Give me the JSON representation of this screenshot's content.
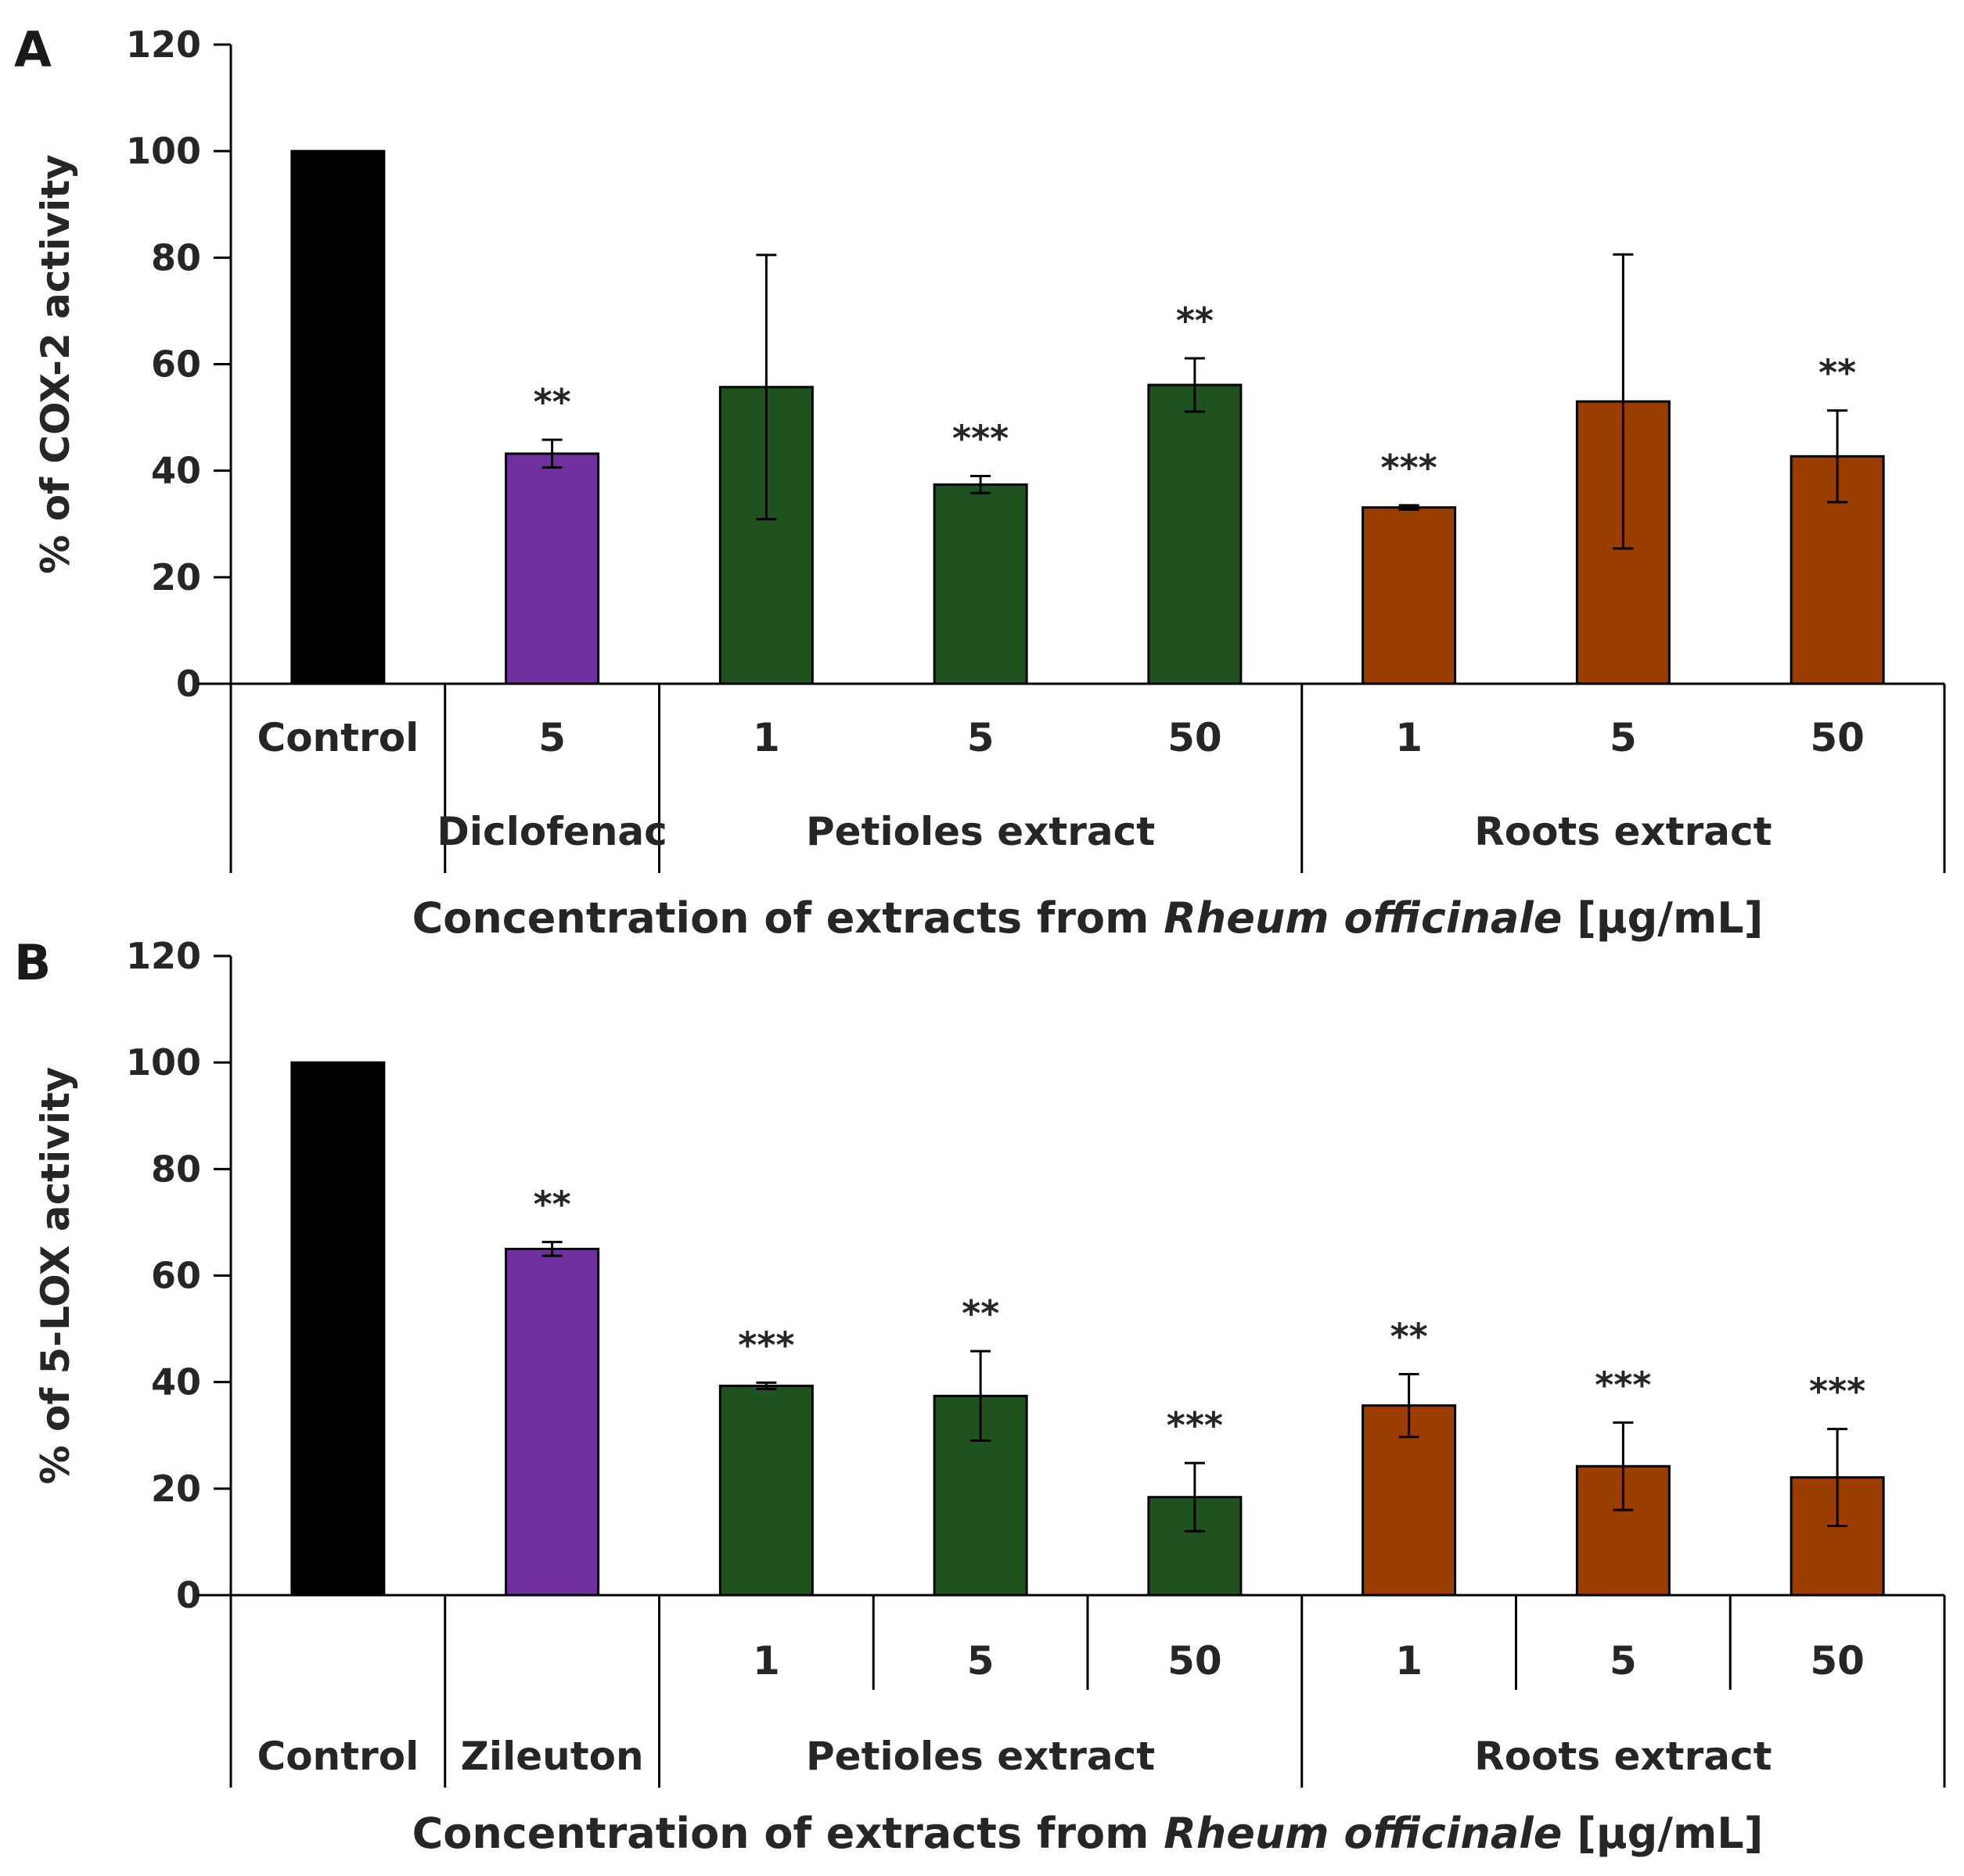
{
  "figure": {
    "colors": {
      "control": "#000000",
      "reference": "#7030A0",
      "petioles": "#1E5320",
      "roots": "#9C3D00",
      "axis": "#000000",
      "text": "#262626"
    }
  },
  "chart_data": [
    {
      "panel": "A",
      "type": "bar",
      "ylabel": "% of COX-2 activity",
      "xlabel": {
        "prefix": "Concentration of extracts from ",
        "italic": "Rheum officinale",
        "suffix": " [µg/mL]"
      },
      "ylim": [
        0,
        120
      ],
      "yticks": [
        0,
        20,
        40,
        60,
        80,
        100,
        120
      ],
      "bars": [
        {
          "group": "control",
          "label": "Control",
          "value": 100,
          "error": 0,
          "sig": ""
        },
        {
          "group": "reference",
          "label": "5",
          "value": 43.2,
          "error": 2.6,
          "sig": "**"
        },
        {
          "group": "petioles",
          "label": "1",
          "value": 55.7,
          "error": 24.8,
          "sig": ""
        },
        {
          "group": "petioles",
          "label": "5",
          "value": 37.4,
          "error": 1.6,
          "sig": "***"
        },
        {
          "group": "petioles",
          "label": "50",
          "value": 56.1,
          "error": 5.0,
          "sig": "**"
        },
        {
          "group": "roots",
          "label": "1",
          "value": 33.1,
          "error": 0.4,
          "sig": "***"
        },
        {
          "group": "roots",
          "label": "5",
          "value": 53.0,
          "error": 27.6,
          "sig": ""
        },
        {
          "group": "roots",
          "label": "50",
          "value": 42.7,
          "error": 8.6,
          "sig": "**"
        }
      ],
      "groups": [
        {
          "label": "",
          "span": [
            0,
            0
          ]
        },
        {
          "label": "Diclofenac",
          "span": [
            1,
            1
          ]
        },
        {
          "label": "Petioles extract",
          "span": [
            2,
            4
          ]
        },
        {
          "label": "Roots extract",
          "span": [
            5,
            7
          ]
        }
      ]
    },
    {
      "panel": "B",
      "type": "bar",
      "ylabel": "% of 5-LOX activity",
      "xlabel": {
        "prefix": "Concentration of extracts from ",
        "italic": "Rheum officinale",
        "suffix": " [µg/mL]"
      },
      "ylim": [
        0,
        120
      ],
      "yticks": [
        0,
        20,
        40,
        60,
        80,
        100,
        120
      ],
      "bars": [
        {
          "group": "control",
          "label": "",
          "value": 100,
          "error": 0,
          "sig": ""
        },
        {
          "group": "reference",
          "label": "",
          "value": 65.0,
          "error": 1.3,
          "sig": "**"
        },
        {
          "group": "petioles",
          "label": "1",
          "value": 39.3,
          "error": 0.6,
          "sig": "***"
        },
        {
          "group": "petioles",
          "label": "5",
          "value": 37.4,
          "error": 8.4,
          "sig": "**"
        },
        {
          "group": "petioles",
          "label": "50",
          "value": 18.4,
          "error": 6.4,
          "sig": "***"
        },
        {
          "group": "roots",
          "label": "1",
          "value": 35.6,
          "error": 5.9,
          "sig": "**"
        },
        {
          "group": "roots",
          "label": "5",
          "value": 24.2,
          "error": 8.2,
          "sig": "***"
        },
        {
          "group": "roots",
          "label": "50",
          "value": 22.1,
          "error": 9.1,
          "sig": "***"
        }
      ],
      "groups": [
        {
          "label": "Control",
          "span": [
            0,
            0
          ]
        },
        {
          "label": "Zileuton",
          "span": [
            1,
            1
          ]
        },
        {
          "label": "Petioles extract",
          "span": [
            2,
            4
          ]
        },
        {
          "label": "Roots extract",
          "span": [
            5,
            7
          ]
        }
      ]
    }
  ]
}
